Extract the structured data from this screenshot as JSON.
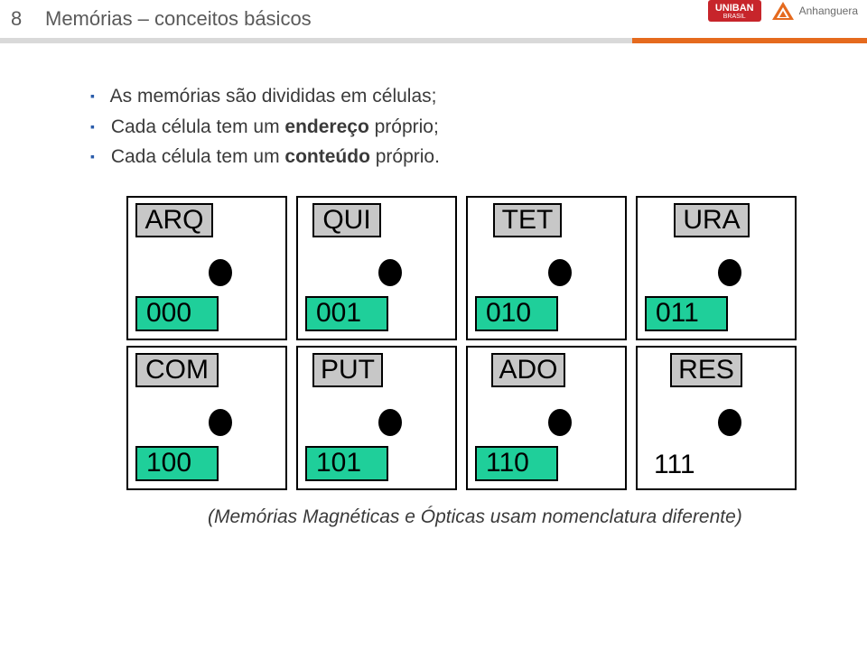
{
  "page_number": "8",
  "title": "Memórias – conceitos básicos",
  "logos": {
    "uniban_text": "UNIBAN",
    "uniban_sub": "BRASIL",
    "anhanguera_text": "Anhanguera"
  },
  "bullets": [
    {
      "prefix": "As memórias são divididas em células;",
      "bold": ""
    },
    {
      "prefix": "Cada célula tem um ",
      "bold": "endereço",
      "suffix": " próprio;"
    },
    {
      "prefix": "Cada célula tem um ",
      "bold": "conteúdo",
      "suffix": " próprio."
    }
  ],
  "cells": {
    "row1": [
      {
        "label": "ARQ",
        "addr": "000",
        "label_class": "w-arq",
        "addr_highlight": true
      },
      {
        "label": "QUI",
        "addr": "001",
        "label_class": "w-qui",
        "addr_highlight": true
      },
      {
        "label": "TET",
        "addr": "010",
        "label_class": "w-tet",
        "addr_highlight": true
      },
      {
        "label": "URA",
        "addr": "011",
        "label_class": "w-ura",
        "addr_highlight": true
      }
    ],
    "row2": [
      {
        "label": "COM",
        "addr": "100",
        "label_class": "w-com",
        "addr_highlight": true
      },
      {
        "label": "PUT",
        "addr": "101",
        "label_class": "w-put",
        "addr_highlight": true
      },
      {
        "label": "ADO",
        "addr": "110",
        "label_class": "w-ado",
        "addr_highlight": true
      },
      {
        "label": "RES",
        "addr": "111",
        "label_class": "w-res",
        "addr_highlight": false
      }
    ]
  },
  "colors": {
    "addr_highlight": "#1fcf9a",
    "label_bg": "#c7c7c7",
    "accent_bar": "#e56a1e",
    "bullet_marker": "#2a5caa"
  },
  "footer_note": "(Memórias Magnéticas e Ópticas usam nomenclatura diferente)"
}
